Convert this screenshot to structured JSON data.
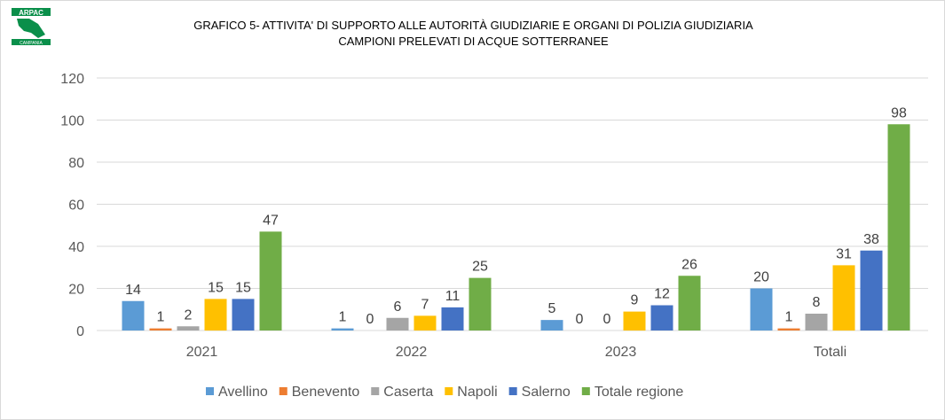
{
  "logo": {
    "top": "ARPAC",
    "bottom": "CAMPANIA",
    "color": "#0a8f4a"
  },
  "chart_data": {
    "type": "bar",
    "title": [
      "GRAFICO 5- ATTIVITA' DI SUPPORTO ALLE AUTORITÀ GIUDIZIARIE E ORGANI DI POLIZIA GIUDIZIARIA",
      "CAMPIONI PRELEVATI DI ACQUE SOTTERRANEE"
    ],
    "categories": [
      "2021",
      "2022",
      "2023",
      "Totali"
    ],
    "series": [
      {
        "name": "Avellino",
        "color": "#5b9bd5",
        "values": [
          14,
          1,
          5,
          20
        ]
      },
      {
        "name": "Benevento",
        "color": "#ed7d31",
        "values": [
          1,
          0,
          0,
          1
        ]
      },
      {
        "name": "Caserta",
        "color": "#a5a5a5",
        "values": [
          2,
          6,
          0,
          8
        ]
      },
      {
        "name": "Napoli",
        "color": "#ffc000",
        "values": [
          15,
          7,
          9,
          31
        ]
      },
      {
        "name": "Salerno",
        "color": "#4472c4",
        "values": [
          15,
          11,
          12,
          38
        ]
      },
      {
        "name": "Totale regione",
        "color": "#70ad47",
        "values": [
          47,
          25,
          26,
          98
        ]
      }
    ],
    "ylim": [
      0,
      120
    ],
    "yticks": [
      0,
      20,
      40,
      60,
      80,
      100,
      120
    ],
    "grid": true,
    "legend": "bottom"
  }
}
